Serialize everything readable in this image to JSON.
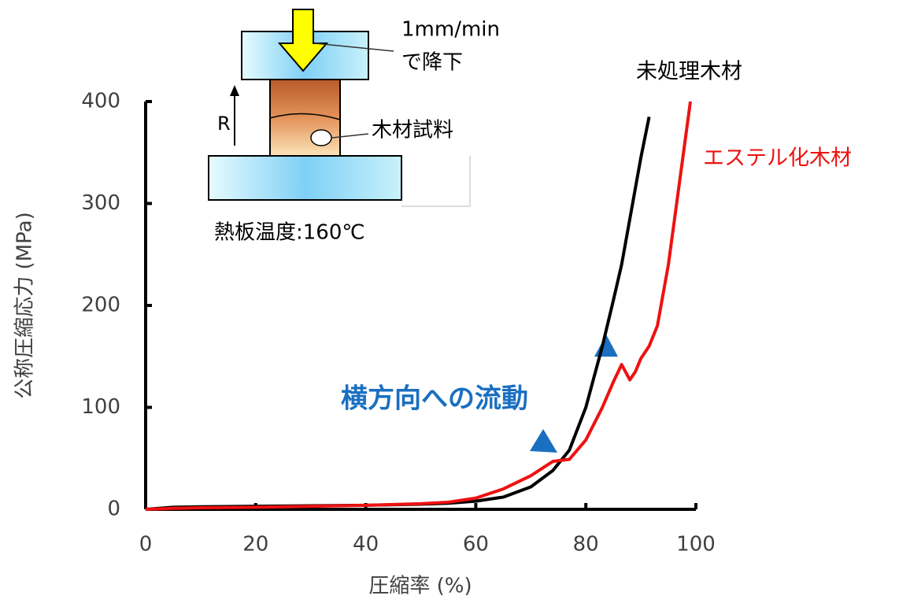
{
  "chart_data": {
    "type": "line",
    "x_label": "圧縮率 (%)",
    "y_label": "公称圧縮応力 (MPa)",
    "xlim": [
      0,
      100
    ],
    "xticks": [
      0,
      20,
      40,
      60,
      80,
      100
    ],
    "ylim": [
      0,
      400
    ],
    "yticks": [
      0,
      100,
      200,
      300,
      400
    ],
    "grid": false,
    "x": [
      0,
      5,
      10,
      20,
      30,
      40,
      50,
      55,
      60,
      65,
      70,
      74,
      77,
      80,
      83,
      85,
      86.5,
      88,
      89,
      90,
      91.5,
      93,
      95,
      97,
      99
    ],
    "series": [
      {
        "name": "未処理木材",
        "color": "#000000",
        "values": [
          0,
          2,
          2.5,
          3,
          3.5,
          4,
          5,
          6,
          8,
          12,
          22,
          38,
          58,
          100,
          160,
          205,
          240,
          285,
          315,
          345,
          385,
          null,
          null,
          null,
          null
        ]
      },
      {
        "name": "エステル化木材",
        "color": "#ee1111",
        "values": [
          0,
          1,
          1.5,
          2,
          3,
          4,
          5.5,
          7,
          11,
          20,
          33,
          47,
          49,
          68,
          100,
          125,
          142,
          127,
          135,
          148,
          160,
          180,
          240,
          320,
          400
        ]
      }
    ],
    "annotation": "横方向への流動",
    "inset": {
      "rate": "1mm/min",
      "descend": "で降下",
      "r": "R",
      "sample": "木材試料",
      "temperature": "熱板温度:160℃"
    }
  }
}
